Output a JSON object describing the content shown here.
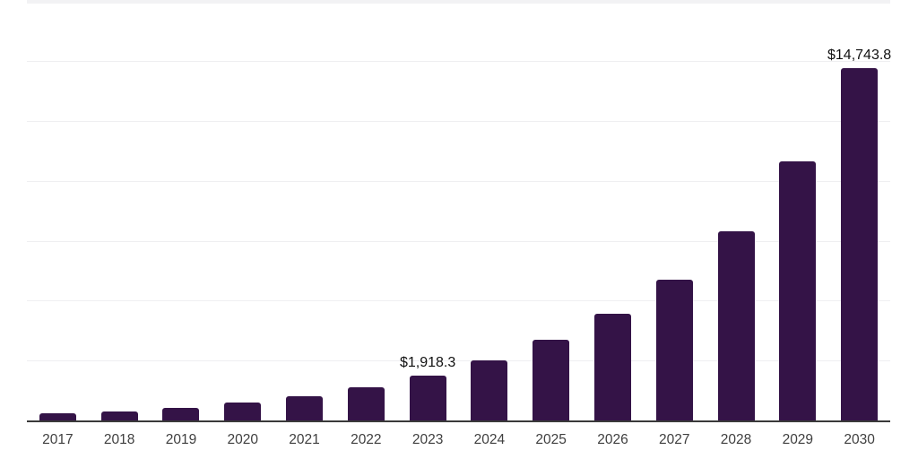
{
  "chart_data": {
    "type": "bar",
    "title": "",
    "xlabel": "",
    "ylabel": "",
    "categories": [
      "2017",
      "2018",
      "2019",
      "2020",
      "2021",
      "2022",
      "2023",
      "2024",
      "2025",
      "2026",
      "2027",
      "2028",
      "2029",
      "2030"
    ],
    "values": [
      320,
      430,
      570,
      780,
      1040,
      1440,
      1918.3,
      2550,
      3400,
      4480,
      5920,
      7950,
      10860,
      14743.8
    ],
    "value_labels": [
      "",
      "",
      "",
      "",
      "",
      "",
      "$1,918.3",
      "",
      "",
      "",
      "",
      "",
      "",
      "$14,743.8"
    ],
    "labeled_points": [
      {
        "category": "2023",
        "label": "$1,918.3",
        "value": 1918.3
      },
      {
        "category": "2030",
        "label": "$14,743.8",
        "value": 14743.8
      }
    ],
    "ylim": [
      0,
      17500
    ],
    "gridline_step": 2500,
    "grid": true,
    "legend": false,
    "x_tick_labels": [
      "2017",
      "2018",
      "2019",
      "2020",
      "2021",
      "2022",
      "2023",
      "2024",
      "2025",
      "2026",
      "2027",
      "2028",
      "2029",
      "2030"
    ],
    "colors": {
      "bar": "#341347",
      "axis_line": "#3a3a3a",
      "gridline": "#efeff1",
      "top_strip": "#f2f2f4",
      "value_label": "#111111",
      "tick_label": "#3f3f3f",
      "background": "#ffffff"
    }
  }
}
